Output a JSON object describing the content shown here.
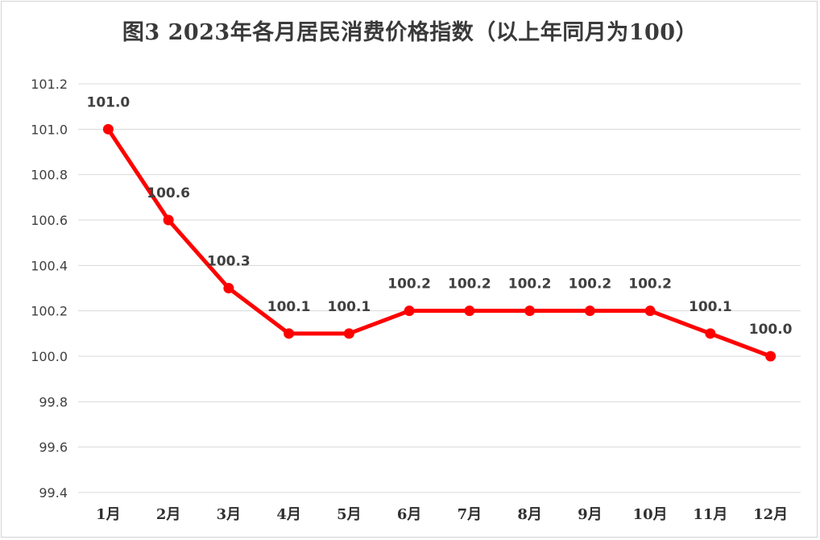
{
  "chart_data": {
    "type": "line",
    "title": "图3 2023年各月居民消费价格指数（以上年同月为100）",
    "categories": [
      "1月",
      "2月",
      "3月",
      "4月",
      "5月",
      "6月",
      "7月",
      "8月",
      "9月",
      "10月",
      "11月",
      "12月"
    ],
    "values": [
      101.0,
      100.6,
      100.3,
      100.1,
      100.1,
      100.2,
      100.2,
      100.2,
      100.2,
      100.2,
      100.1,
      100.0
    ],
    "data_labels": [
      "101.0",
      "100.6",
      "100.3",
      "100.1",
      "100.1",
      "100.2",
      "100.2",
      "100.2",
      "100.2",
      "100.2",
      "100.1",
      "100.0"
    ],
    "yticks": [
      "99.4",
      "99.6",
      "99.8",
      "100.0",
      "100.2",
      "100.4",
      "100.6",
      "100.8",
      "101.0",
      "101.2"
    ],
    "ylim": [
      99.4,
      101.2
    ],
    "xlabel": "",
    "ylabel": "",
    "grid": true,
    "legend": "none",
    "line_color": "#ff0000",
    "grid_color": "#d9d9d9"
  }
}
